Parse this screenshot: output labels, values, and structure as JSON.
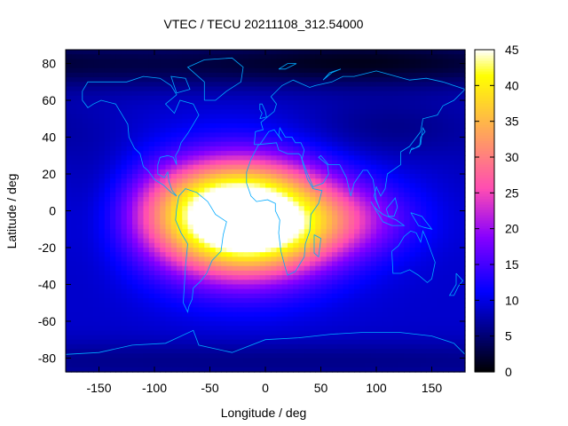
{
  "chart_data": {
    "type": "heatmap",
    "title": "VTEC / TECU 20211108_312.54000",
    "xlabel": "Longitude / deg",
    "ylabel": "Latitude / deg",
    "xlim": [
      -180,
      180
    ],
    "ylim": [
      -87.5,
      87.5
    ],
    "xticks": [
      -150,
      -100,
      -50,
      0,
      50,
      100,
      150
    ],
    "yticks": [
      -80,
      -60,
      -40,
      -20,
      0,
      20,
      40,
      60,
      80
    ],
    "colorbar": {
      "min": 0,
      "max": 45,
      "ticks": [
        0,
        5,
        10,
        15,
        20,
        25,
        30,
        35,
        40,
        45
      ],
      "colormap": "gnuplot-rgbformulae-30-31-32"
    },
    "grid_resolution": {
      "lon_step_deg": 5,
      "lat_step_deg": 2.5
    },
    "background_level": 9,
    "features": [
      {
        "name": "equatorial-anomaly-peak",
        "lon": -20,
        "lat": -5,
        "peak": 38,
        "lon_width": 55,
        "lat_width": 22
      },
      {
        "name": "anomaly-north-crest",
        "lon": -30,
        "lat": 12,
        "peak": 7,
        "lon_width": 45,
        "lat_width": 12
      },
      {
        "name": "anomaly-south-crest",
        "lon": -15,
        "lat": -18,
        "peak": 6,
        "lon_width": 45,
        "lat_width": 12
      },
      {
        "name": "eastern-extension",
        "lon": 60,
        "lat": -5,
        "peak": 11,
        "lon_width": 50,
        "lat_width": 14
      },
      {
        "name": "western-extension",
        "lon": -85,
        "lat": -2,
        "peak": 7,
        "lon_width": 35,
        "lat_width": 15
      },
      {
        "name": "north-polar-low",
        "lon": 0,
        "lat": 80,
        "peak": -6,
        "lon_width": 400,
        "lat_width": 10
      },
      {
        "name": "arctic-dark-center",
        "lon": 90,
        "lat": 82,
        "peak": -2,
        "lon_width": 70,
        "lat_width": 8
      },
      {
        "name": "asia-midlat-low",
        "lon": 110,
        "lat": 45,
        "peak": -3,
        "lon_width": 60,
        "lat_width": 12
      },
      {
        "name": "pacific-trough",
        "lon": -150,
        "lat": 5,
        "peak": -2,
        "lon_width": 25,
        "lat_width": 25
      },
      {
        "name": "south-polar-low",
        "lon": 0,
        "lat": -82,
        "peak": -3,
        "lon_width": 400,
        "lat_width": 8
      }
    ],
    "coastline_color": "#00aaff"
  }
}
